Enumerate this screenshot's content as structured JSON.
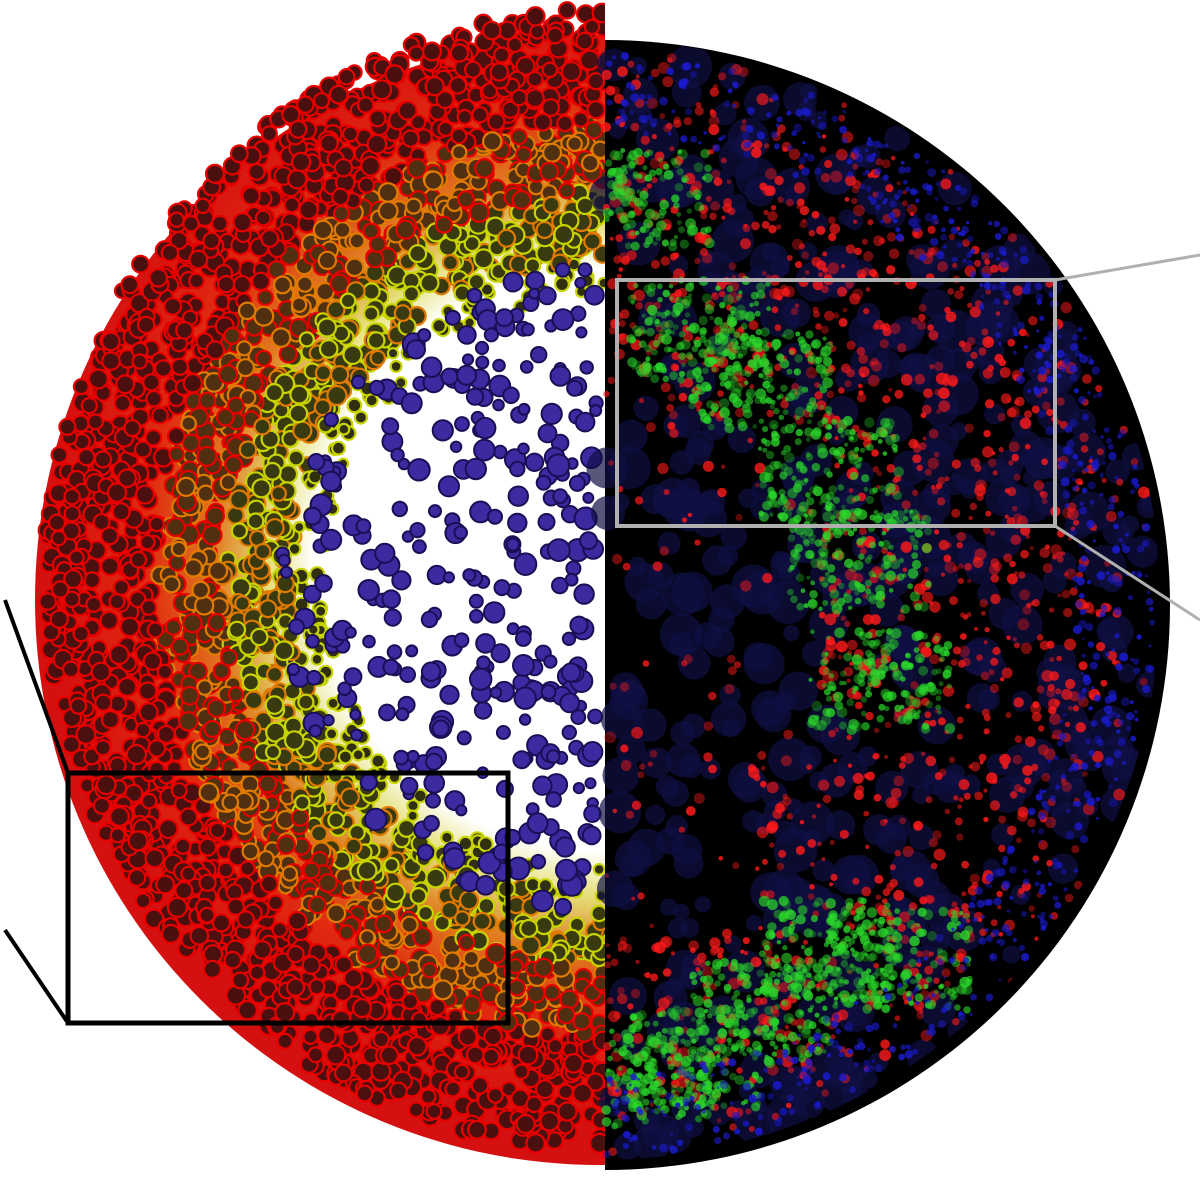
{
  "figure": {
    "kind": "split-composite",
    "left_panel": {
      "content": "segmented-cell-overlay",
      "palette": {
        "outer_cells": "#e60000",
        "middle_cells": "#e07a00",
        "transition_cells": "#c8d400",
        "inner_cells": "#3b2aa0",
        "inner_cells_outline": "#1a0f55",
        "cell_border": "#200000",
        "background": "#ffffff"
      }
    },
    "right_panel": {
      "content": "fluorescence-micrograph",
      "palette": {
        "background": "#000000",
        "channel_red": "#ff1a1a",
        "channel_green": "#2bd92b",
        "channel_blue": "#1a1acc"
      }
    },
    "callouts": {
      "left_inset_color": "#000000",
      "right_inset_color": "#b0b0b0"
    }
  }
}
